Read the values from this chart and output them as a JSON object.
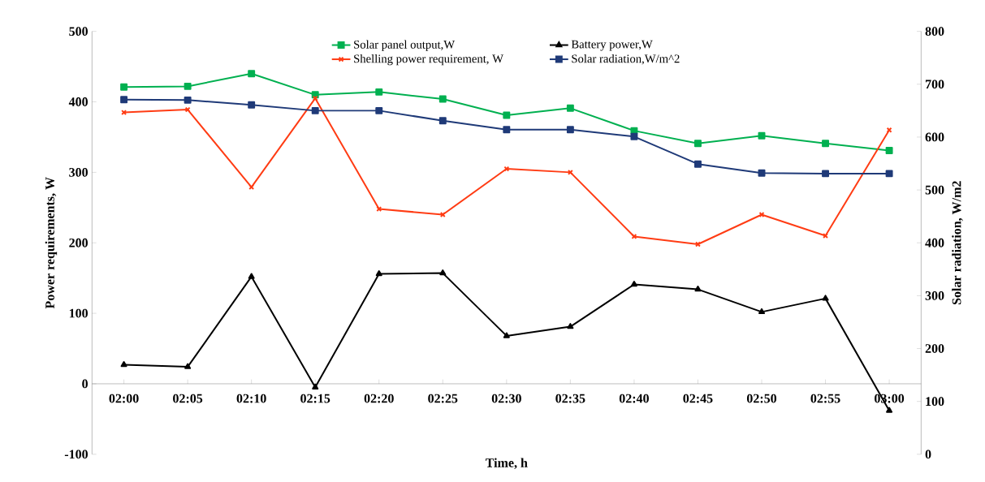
{
  "chart_data": {
    "type": "line",
    "categories": [
      "02:00",
      "02:05",
      "02:10",
      "02:15",
      "02:20",
      "02:25",
      "02:30",
      "02:35",
      "02:40",
      "02:45",
      "02:50",
      "02:55",
      "03:00"
    ],
    "series": [
      {
        "name": "Solar panel output,W",
        "color": "#00b050",
        "marker": "square",
        "values": [
          421,
          422,
          440,
          410,
          414,
          404,
          381,
          391,
          359,
          341,
          352,
          341,
          331
        ]
      },
      {
        "name": "Battery power,W",
        "color": "#000000",
        "marker": "triangle",
        "values": [
          27,
          24,
          152,
          -5,
          156,
          157,
          68,
          81,
          141,
          134,
          102,
          121,
          -38
        ]
      },
      {
        "name": "Shelling power requirement, W",
        "color": "#ff3c14",
        "marker": "cross",
        "values": [
          385,
          389,
          279,
          405,
          248,
          240,
          305,
          300,
          209,
          198,
          240,
          210,
          360
        ]
      },
      {
        "name": "Solar radiation,W/m^2",
        "color": "#1f3a78",
        "marker": "square",
        "axis": "y2",
        "values": [
          671,
          670,
          661,
          650,
          650,
          631,
          614,
          614,
          601,
          549,
          532,
          531,
          531
        ]
      }
    ],
    "ylim": [
      -100,
      500
    ],
    "yticks": [
      -100,
      0,
      100,
      200,
      300,
      400,
      500
    ],
    "y2lim": [
      0,
      800
    ],
    "y2ticks": [
      0,
      100,
      200,
      300,
      400,
      500,
      600,
      700,
      800
    ],
    "xlabel": "Time, h",
    "ylabel": "Power requirements, W",
    "y2label": "Solar radiation, W/m2",
    "legend": "top"
  }
}
